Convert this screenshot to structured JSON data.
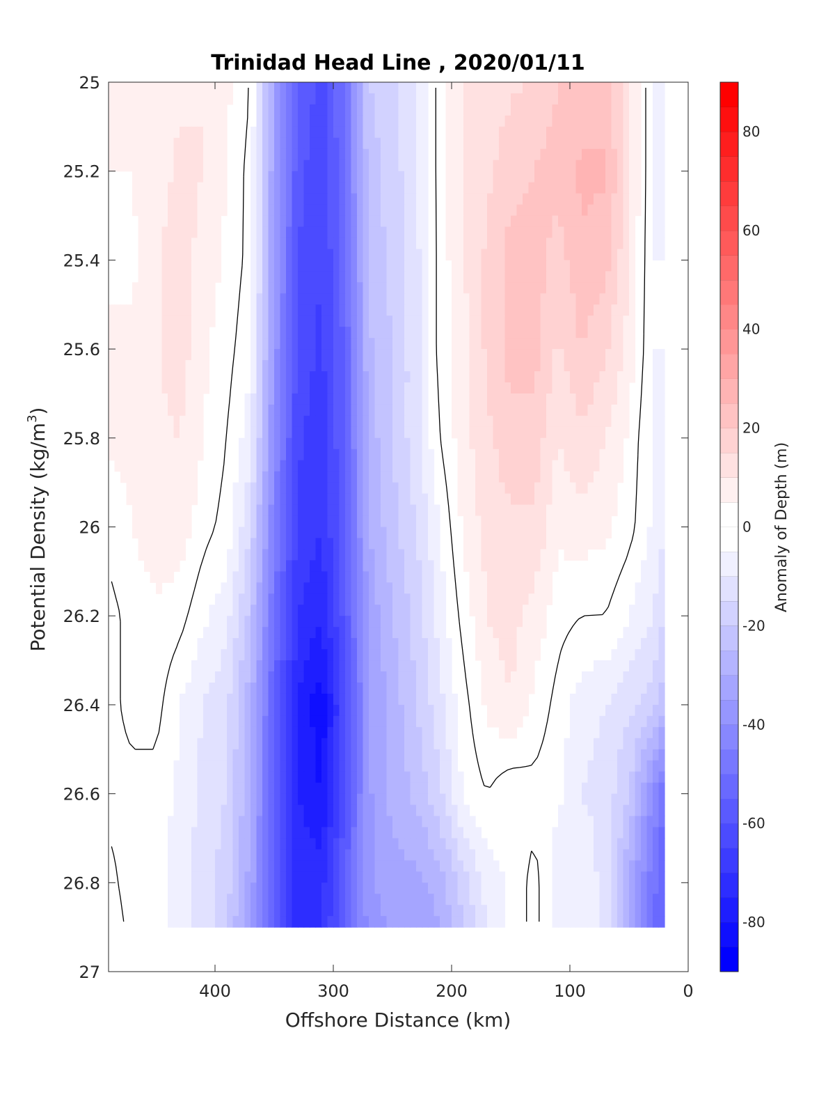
{
  "chart_data": {
    "type": "heatmap",
    "title": "Trinidad Head Line , 2020/01/11",
    "xlabel": "Offshore Distance (km)",
    "ylabel": "Potential Density (kg/m",
    "ylabel_superscript": "3",
    "ylabel_suffix": ")",
    "xlim": [
      490,
      0
    ],
    "ylim": [
      25,
      27
    ],
    "x_reversed": true,
    "y_reversed": true,
    "x_ticks": [
      400,
      300,
      200,
      100,
      0
    ],
    "y_ticks": [
      25,
      25.2,
      25.4,
      25.6,
      25.8,
      26,
      26.2,
      26.4,
      26.6,
      26.8,
      27
    ],
    "data_extent": {
      "x": [
        490,
        20
      ],
      "y": [
        25,
        26.9
      ]
    },
    "x": [
      490,
      470,
      450,
      430,
      410,
      390,
      370,
      350,
      330,
      310,
      290,
      270,
      250,
      230,
      210,
      190,
      170,
      150,
      130,
      110,
      90,
      70,
      50,
      30,
      20
    ],
    "y": [
      25.0,
      25.2,
      25.4,
      25.6,
      25.8,
      26.0,
      26.2,
      26.4,
      26.6,
      26.8,
      26.9
    ],
    "values": [
      [
        5,
        6,
        8,
        9,
        10,
        6,
        0,
        -32,
        -55,
        -62,
        -50,
        -20,
        -18,
        -10,
        2,
        10,
        12,
        14,
        16,
        20,
        22,
        22,
        12,
        -5,
        -10
      ],
      [
        5,
        5,
        8,
        11,
        10,
        5,
        -2,
        -34,
        -58,
        -64,
        -50,
        -22,
        -18,
        -10,
        2,
        10,
        14,
        18,
        20,
        22,
        26,
        26,
        12,
        -5,
        -10
      ],
      [
        5,
        4,
        9,
        13,
        8,
        4,
        -2,
        -35,
        -60,
        -65,
        -52,
        -24,
        -18,
        -12,
        2,
        10,
        16,
        22,
        22,
        18,
        24,
        22,
        10,
        -5,
        -5
      ],
      [
        5,
        6,
        9,
        13,
        6,
        2,
        -4,
        -37,
        -62,
        -66,
        -54,
        -26,
        -20,
        -12,
        2,
        8,
        16,
        22,
        22,
        14,
        20,
        16,
        8,
        -5,
        -5
      ],
      [
        6,
        6,
        9,
        10,
        5,
        0,
        -8,
        -40,
        -64,
        -68,
        -55,
        -28,
        -20,
        -12,
        0,
        8,
        14,
        18,
        18,
        10,
        14,
        10,
        4,
        -6,
        -8
      ],
      [
        2,
        5,
        8,
        8,
        2,
        -2,
        -15,
        -45,
        -66,
        -70,
        -56,
        -30,
        -22,
        -15,
        -5,
        6,
        12,
        14,
        14,
        6,
        8,
        6,
        2,
        -6,
        -10
      ],
      [
        -2,
        2,
        4,
        2,
        -4,
        -8,
        -22,
        -50,
        -70,
        -74,
        -58,
        -34,
        -25,
        -18,
        -8,
        2,
        10,
        12,
        8,
        2,
        0,
        0,
        -5,
        -10,
        -15
      ],
      [
        -2,
        2,
        2,
        -5,
        -10,
        -14,
        -28,
        -55,
        -75,
        -84,
        -62,
        -36,
        -28,
        -20,
        -12,
        -2,
        6,
        10,
        4,
        -2,
        -8,
        -10,
        -14,
        -18,
        -24
      ],
      [
        -2,
        -2,
        -2,
        -6,
        -12,
        -15,
        -30,
        -56,
        -75,
        -80,
        -60,
        -36,
        -28,
        -24,
        -16,
        -4,
        0,
        -4,
        -2,
        -4,
        -10,
        -12,
        -20,
        -40,
        -50
      ],
      [
        2,
        -3,
        -3,
        -8,
        -12,
        -18,
        -32,
        -56,
        -72,
        -72,
        -56,
        -36,
        -32,
        -32,
        -28,
        -18,
        -8,
        -4,
        2,
        -8,
        -6,
        -12,
        -30,
        -48,
        -55
      ],
      [
        4,
        -2,
        -2,
        -8,
        -12,
        -20,
        -34,
        -58,
        -72,
        -70,
        -56,
        -38,
        -34,
        -34,
        -30,
        -20,
        -10,
        -4,
        2,
        -8,
        -6,
        -12,
        -32,
        -50,
        -56
      ]
    ],
    "colorbar": {
      "label": "Anomaly of Depth (m)",
      "range": [
        -90,
        90
      ],
      "step": 5,
      "ticks": [
        -80,
        -60,
        -40,
        -20,
        0,
        20,
        40,
        60,
        80
      ],
      "color_negative_end": "#0000ff",
      "color_positive_end": "#ff0000",
      "color_zero": "#ffffff"
    },
    "zero_contour_color": "#000000",
    "grid": false
  }
}
